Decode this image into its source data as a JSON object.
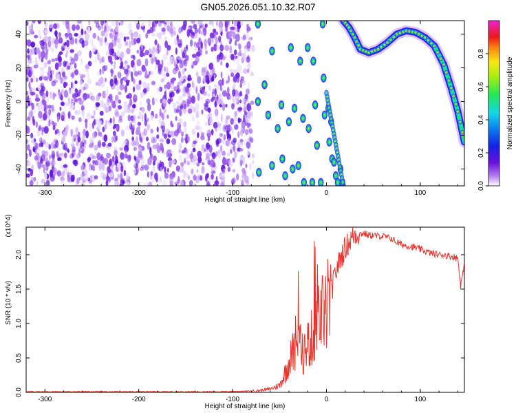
{
  "title": "GN05.2026.051.10.32.R07",
  "colors": {
    "snr_line": "#e8312a",
    "frame": "#000000",
    "noise_tint": "#7a2be0"
  },
  "chart_data": [
    {
      "type": "heatmap",
      "xlabel": "Height of straight line (km)",
      "ylabel": "Frequency (Hz)",
      "xlim": [
        -320,
        147
      ],
      "ylim": [
        -50,
        48
      ],
      "xticks": [
        -300,
        -200,
        -100,
        0,
        100
      ],
      "xtick_labels": [
        "-300",
        "-200",
        "-100",
        "0",
        "100"
      ],
      "yticks": [
        -40,
        -20,
        0,
        20,
        40
      ],
      "ytick_labels": [
        "-40",
        "-20",
        "0",
        "20",
        "40"
      ],
      "grid": false,
      "colorbar": {
        "label": "Normalized spectral amplitude",
        "range": [
          0,
          1
        ],
        "ticks": [
          0,
          0.2,
          0.4,
          0.6,
          0.8
        ],
        "tick_labels": [
          "0.0",
          "0.2",
          "0.4",
          "0.6",
          "0.8"
        ],
        "colormap": "rainbow (purple to magenta)"
      },
      "features": {
        "noise_region_x": [
          -320,
          -78
        ],
        "aliased_branch_x": [
          -75,
          18
        ],
        "ridge": [
          {
            "x": 18,
            "y": 48
          },
          {
            "x": 24,
            "y": 44
          },
          {
            "x": 30,
            "y": 38
          },
          {
            "x": 36,
            "y": 31
          },
          {
            "x": 45,
            "y": 29
          },
          {
            "x": 55,
            "y": 31
          },
          {
            "x": 65,
            "y": 35
          },
          {
            "x": 75,
            "y": 40
          },
          {
            "x": 85,
            "y": 42
          },
          {
            "x": 95,
            "y": 41
          },
          {
            "x": 105,
            "y": 38
          },
          {
            "x": 115,
            "y": 33
          },
          {
            "x": 125,
            "y": 22
          },
          {
            "x": 133,
            "y": 8
          },
          {
            "x": 140,
            "y": -6
          },
          {
            "x": 147,
            "y": -24
          }
        ]
      }
    },
    {
      "type": "line",
      "xlabel": "Height of straight line (km)",
      "ylabel": "SNR (10 * v/v)",
      "y_multiplier": "(x10^4)",
      "xlim": [
        -320,
        147
      ],
      "ylim": [
        0,
        2.4
      ],
      "xticks": [
        -300,
        -200,
        -100,
        0,
        100
      ],
      "xtick_labels": [
        "-300",
        "-200",
        "-100",
        "0",
        "100"
      ],
      "yticks": [
        0,
        0.5,
        1,
        1.5,
        2
      ],
      "ytick_labels": [
        "0.0",
        "0.5",
        "1.0",
        "1.5",
        "2.0"
      ],
      "grid": false,
      "series": [
        {
          "color": "#e8312a",
          "x": [
            -320,
            -200,
            -110,
            -75,
            -60,
            -50,
            -45,
            -40,
            -35,
            -30,
            -25,
            -20,
            -15,
            -10,
            -5,
            0,
            5,
            10,
            15,
            20,
            25,
            30,
            35,
            40,
            45,
            50,
            55,
            60,
            65,
            70,
            75,
            80,
            85,
            90,
            95,
            100,
            105,
            110,
            115,
            120,
            125,
            130,
            135,
            140,
            143,
            145,
            147
          ],
          "y": [
            0.01,
            0.01,
            0.01,
            0.02,
            0.05,
            0.1,
            0.25,
            0.45,
            0.6,
            0.75,
            0.55,
            0.7,
            0.8,
            1.05,
            1.15,
            1.2,
            1.45,
            1.75,
            1.95,
            2.1,
            2.2,
            2.3,
            2.3,
            2.31,
            2.28,
            2.28,
            2.27,
            2.27,
            2.25,
            2.23,
            2.18,
            2.15,
            2.13,
            2.12,
            2.1,
            2.08,
            2.05,
            2.03,
            2.01,
            2.0,
            2.0,
            1.98,
            1.97,
            1.95,
            1.55,
            1.7,
            1.84
          ]
        }
      ]
    }
  ]
}
